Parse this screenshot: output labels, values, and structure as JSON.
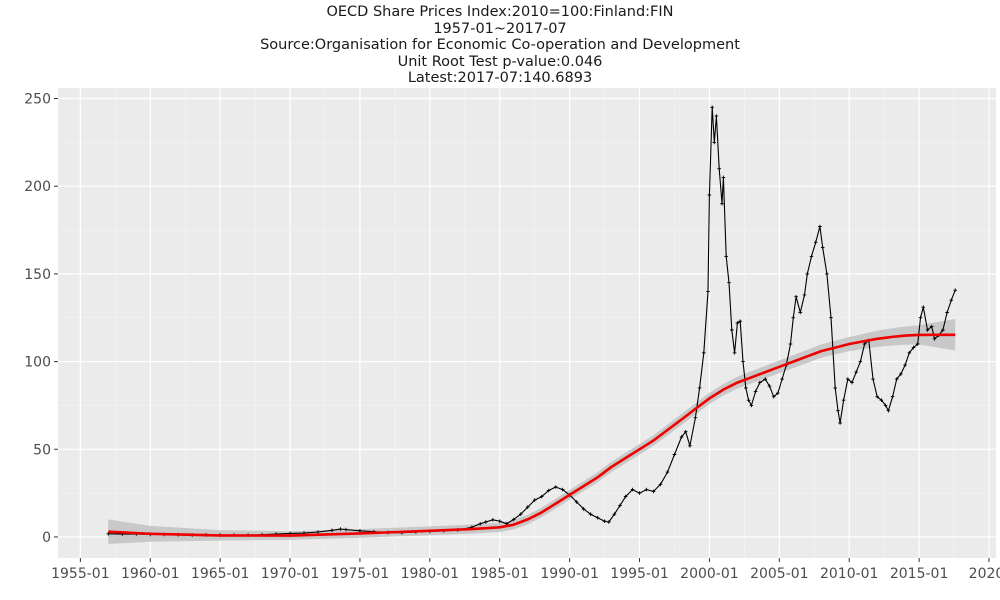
{
  "title_lines": [
    "OECD Share Prices Index:2010=100:Finland:FIN",
    "1957-01~2017-07",
    "Source:Organisation for Economic Co-operation and Development",
    "Unit Root Test p-value:0.046",
    "Latest:2017-07:140.6893"
  ],
  "colors": {
    "panel": "#ebebeb",
    "grid_major": "#ffffff",
    "grid_minor": "#f5f5f5",
    "series": "#000000",
    "trend": "#ee0000",
    "band": "#c8c8c8"
  },
  "chart_data": {
    "type": "line",
    "title": "OECD Share Prices Index:2010=100:Finland:FIN",
    "subtitle": "1957-01~2017-07",
    "xlabel": "",
    "ylabel": "",
    "xlim": [
      1953.4,
      2020.5
    ],
    "ylim": [
      -12,
      256
    ],
    "grid": true,
    "legend": "none",
    "x_ticks": [
      1955,
      1960,
      1965,
      1970,
      1975,
      1980,
      1985,
      1990,
      1995,
      2000,
      2005,
      2010,
      2015,
      2020
    ],
    "x_tick_labels": [
      "1955-01",
      "1960-01",
      "1965-01",
      "1970-01",
      "1975-01",
      "1980-01",
      "1985-01",
      "1990-01",
      "1995-01",
      "2000-01",
      "2005-01",
      "2010-01",
      "2015-01",
      "2020-"
    ],
    "y_ticks": [
      0,
      50,
      100,
      150,
      200,
      250
    ],
    "y_tick_labels": [
      "0",
      "50",
      "100",
      "150",
      "200",
      "250"
    ],
    "series": [
      {
        "kind": "observed",
        "points": [
          [
            1957.0,
            1.8
          ],
          [
            1958.0,
            1.6
          ],
          [
            1959.0,
            1.6
          ],
          [
            1960.0,
            1.5
          ],
          [
            1961.0,
            1.4
          ],
          [
            1962.0,
            1.3
          ],
          [
            1963.0,
            1.2
          ],
          [
            1964.0,
            1.2
          ],
          [
            1965.0,
            1.1
          ],
          [
            1966.0,
            1.1
          ],
          [
            1967.0,
            1.1
          ],
          [
            1968.0,
            1.3
          ],
          [
            1969.0,
            1.6
          ],
          [
            1970.0,
            2.0
          ],
          [
            1971.0,
            2.2
          ],
          [
            1972.0,
            2.8
          ],
          [
            1973.0,
            3.8
          ],
          [
            1973.6,
            4.5
          ],
          [
            1974.0,
            4.2
          ],
          [
            1975.0,
            3.5
          ],
          [
            1976.0,
            3.0
          ],
          [
            1977.0,
            2.5
          ],
          [
            1978.0,
            2.4
          ],
          [
            1979.0,
            2.8
          ],
          [
            1980.0,
            3.2
          ],
          [
            1981.0,
            3.5
          ],
          [
            1982.0,
            4.0
          ],
          [
            1983.0,
            5.5
          ],
          [
            1983.6,
            7.5
          ],
          [
            1984.0,
            8.5
          ],
          [
            1984.5,
            9.8
          ],
          [
            1985.0,
            9.0
          ],
          [
            1985.5,
            7.5
          ],
          [
            1986.0,
            10.0
          ],
          [
            1986.5,
            13.0
          ],
          [
            1987.0,
            17.0
          ],
          [
            1987.5,
            21.0
          ],
          [
            1988.0,
            23.0
          ],
          [
            1988.5,
            26.5
          ],
          [
            1989.0,
            28.5
          ],
          [
            1989.5,
            27.0
          ],
          [
            1990.0,
            24.0
          ],
          [
            1990.5,
            20.0
          ],
          [
            1991.0,
            16.0
          ],
          [
            1991.5,
            13.0
          ],
          [
            1992.0,
            11.0
          ],
          [
            1992.5,
            9.0
          ],
          [
            1992.8,
            8.5
          ],
          [
            1993.2,
            13.0
          ],
          [
            1993.6,
            18.0
          ],
          [
            1994.0,
            23.0
          ],
          [
            1994.5,
            27.0
          ],
          [
            1995.0,
            25.0
          ],
          [
            1995.5,
            27.0
          ],
          [
            1996.0,
            26.0
          ],
          [
            1996.5,
            30.0
          ],
          [
            1997.0,
            37.0
          ],
          [
            1997.5,
            47.0
          ],
          [
            1998.0,
            57.0
          ],
          [
            1998.3,
            60.0
          ],
          [
            1998.6,
            52.0
          ],
          [
            1999.0,
            68.0
          ],
          [
            1999.3,
            85.0
          ],
          [
            1999.6,
            105.0
          ],
          [
            1999.9,
            140.0
          ],
          [
            2000.0,
            195.0
          ],
          [
            2000.2,
            245.0
          ],
          [
            2000.35,
            225.0
          ],
          [
            2000.5,
            240.0
          ],
          [
            2000.7,
            210.0
          ],
          [
            2000.9,
            190.0
          ],
          [
            2001.0,
            205.0
          ],
          [
            2001.2,
            160.0
          ],
          [
            2001.4,
            145.0
          ],
          [
            2001.6,
            118.0
          ],
          [
            2001.8,
            105.0
          ],
          [
            2002.0,
            122.0
          ],
          [
            2002.2,
            123.0
          ],
          [
            2002.4,
            100.0
          ],
          [
            2002.6,
            85.0
          ],
          [
            2002.8,
            78.0
          ],
          [
            2003.0,
            75.0
          ],
          [
            2003.3,
            83.0
          ],
          [
            2003.6,
            88.0
          ],
          [
            2004.0,
            90.0
          ],
          [
            2004.3,
            86.0
          ],
          [
            2004.6,
            80.0
          ],
          [
            2004.9,
            82.0
          ],
          [
            2005.2,
            90.0
          ],
          [
            2005.5,
            98.0
          ],
          [
            2005.8,
            110.0
          ],
          [
            2006.0,
            125.0
          ],
          [
            2006.2,
            137.0
          ],
          [
            2006.5,
            128.0
          ],
          [
            2006.8,
            138.0
          ],
          [
            2007.0,
            150.0
          ],
          [
            2007.3,
            160.0
          ],
          [
            2007.6,
            168.0
          ],
          [
            2007.9,
            177.0
          ],
          [
            2008.1,
            165.0
          ],
          [
            2008.4,
            150.0
          ],
          [
            2008.7,
            125.0
          ],
          [
            2009.0,
            85.0
          ],
          [
            2009.2,
            72.0
          ],
          [
            2009.35,
            65.0
          ],
          [
            2009.6,
            78.0
          ],
          [
            2009.9,
            90.0
          ],
          [
            2010.2,
            88.0
          ],
          [
            2010.5,
            94.0
          ],
          [
            2010.8,
            100.0
          ],
          [
            2011.1,
            110.0
          ],
          [
            2011.4,
            112.0
          ],
          [
            2011.7,
            90.0
          ],
          [
            2012.0,
            80.0
          ],
          [
            2012.3,
            78.0
          ],
          [
            2012.6,
            75.0
          ],
          [
            2012.8,
            72.0
          ],
          [
            2013.1,
            80.0
          ],
          [
            2013.4,
            90.0
          ],
          [
            2013.7,
            93.0
          ],
          [
            2014.0,
            98.0
          ],
          [
            2014.3,
            105.0
          ],
          [
            2014.6,
            108.0
          ],
          [
            2014.9,
            110.0
          ],
          [
            2015.1,
            125.0
          ],
          [
            2015.3,
            131.0
          ],
          [
            2015.6,
            118.0
          ],
          [
            2015.9,
            120.0
          ],
          [
            2016.1,
            113.0
          ],
          [
            2016.4,
            115.0
          ],
          [
            2016.7,
            118.0
          ],
          [
            2017.0,
            128.0
          ],
          [
            2017.3,
            135.0
          ],
          [
            2017.58,
            140.7
          ]
        ]
      },
      {
        "kind": "trend",
        "points": [
          [
            1957.0,
            3.0
          ],
          [
            1960.0,
            1.8
          ],
          [
            1965.0,
            0.9
          ],
          [
            1970.0,
            0.8
          ],
          [
            1975.0,
            2.0
          ],
          [
            1980.0,
            3.5
          ],
          [
            1983.0,
            4.5
          ],
          [
            1985.0,
            5.5
          ],
          [
            1986.0,
            7.0
          ],
          [
            1987.0,
            10.0
          ],
          [
            1988.0,
            14.0
          ],
          [
            1989.0,
            19.0
          ],
          [
            1990.0,
            24.0
          ],
          [
            1991.0,
            29.0
          ],
          [
            1992.0,
            34.0
          ],
          [
            1993.0,
            40.0
          ],
          [
            1994.0,
            45.0
          ],
          [
            1995.0,
            50.0
          ],
          [
            1996.0,
            55.0
          ],
          [
            1997.0,
            61.0
          ],
          [
            1998.0,
            67.0
          ],
          [
            1999.0,
            73.0
          ],
          [
            2000.0,
            79.0
          ],
          [
            2001.0,
            84.0
          ],
          [
            2002.0,
            88.0
          ],
          [
            2003.0,
            91.0
          ],
          [
            2004.0,
            94.0
          ],
          [
            2005.0,
            97.0
          ],
          [
            2006.0,
            100.0
          ],
          [
            2007.0,
            103.0
          ],
          [
            2008.0,
            106.0
          ],
          [
            2009.0,
            108.0
          ],
          [
            2010.0,
            110.0
          ],
          [
            2011.0,
            111.5
          ],
          [
            2012.0,
            113.0
          ],
          [
            2013.0,
            114.0
          ],
          [
            2014.0,
            114.8
          ],
          [
            2015.0,
            115.2
          ],
          [
            2016.0,
            115.3
          ],
          [
            2017.58,
            115.3
          ]
        ],
        "band_halfwidth": [
          [
            1957.0,
            7.0
          ],
          [
            1960.0,
            4.5
          ],
          [
            1965.0,
            3.0
          ],
          [
            1970.0,
            2.5
          ],
          [
            1980.0,
            2.5
          ],
          [
            1990.0,
            2.8
          ],
          [
            2000.0,
            3.2
          ],
          [
            2010.0,
            4.0
          ],
          [
            2015.0,
            5.5
          ],
          [
            2017.58,
            9.0
          ]
        ]
      }
    ]
  }
}
